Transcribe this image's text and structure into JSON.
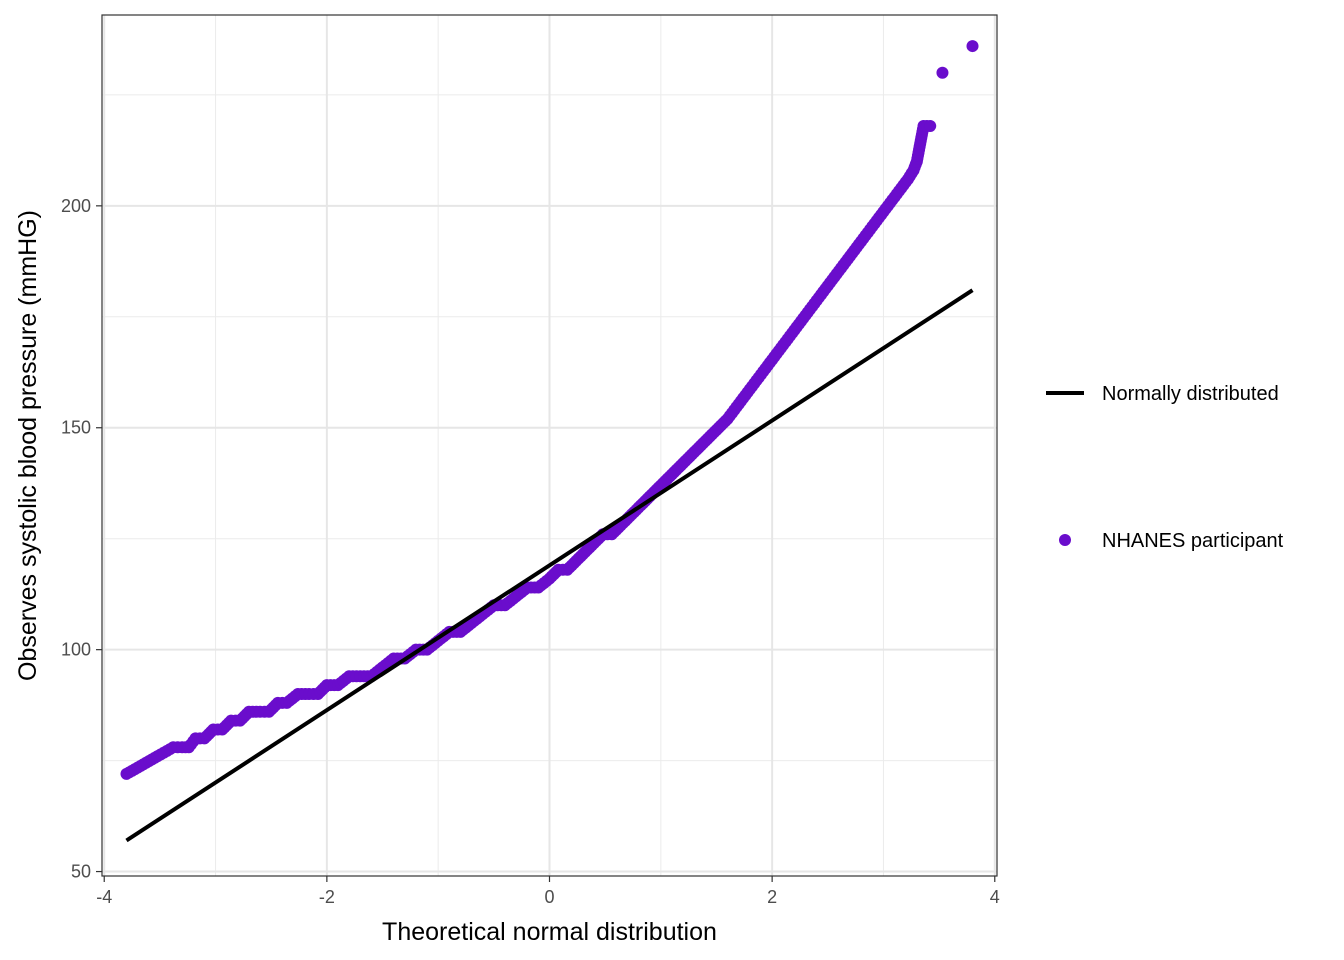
{
  "chart_data": {
    "type": "scatter",
    "xlabel": "Theoretical normal distribution",
    "ylabel": "Observes systolic blood pressure (mmHG)",
    "xlim": [
      -4.02,
      4.02
    ],
    "ylim": [
      49,
      243
    ],
    "x_ticks": [
      -4,
      -2,
      0,
      2,
      4
    ],
    "x_tick_labels": [
      "-4",
      "-2",
      "0",
      "2",
      "4"
    ],
    "y_ticks": [
      50,
      100,
      150,
      200
    ],
    "y_tick_labels": [
      "50",
      "100",
      "150",
      "200"
    ],
    "grid": true,
    "legend_position": "right",
    "colors": {
      "points": "#6a0dcc",
      "line": "#000000"
    },
    "series": [
      {
        "name": "Normally distributed",
        "kind": "line",
        "x": [
          -3.8,
          3.8
        ],
        "y": [
          57,
          181
        ]
      },
      {
        "name": "NHANES participant",
        "kind": "points",
        "points": [
          [
            -3.8,
            72
          ],
          [
            -3.52,
            76
          ],
          [
            -3.38,
            78
          ],
          [
            -3.3,
            78
          ],
          [
            -3.24,
            78
          ],
          [
            -3.18,
            80
          ],
          [
            -3.1,
            80
          ],
          [
            -3.02,
            82
          ],
          [
            -2.94,
            82
          ],
          [
            -2.86,
            84
          ],
          [
            -2.78,
            84
          ],
          [
            -2.7,
            86
          ],
          [
            -2.6,
            86
          ],
          [
            -2.52,
            86
          ],
          [
            -2.44,
            88
          ],
          [
            -2.36,
            88
          ],
          [
            -2.26,
            90
          ],
          [
            -2.16,
            90
          ],
          [
            -2.08,
            90
          ],
          [
            -2.0,
            92
          ],
          [
            -1.9,
            92
          ],
          [
            -1.8,
            94
          ],
          [
            -1.7,
            94
          ],
          [
            -1.6,
            94
          ],
          [
            -1.5,
            96
          ],
          [
            -1.4,
            98
          ],
          [
            -1.3,
            98
          ],
          [
            -1.2,
            100
          ],
          [
            -1.1,
            100
          ],
          [
            -1.0,
            102
          ],
          [
            -0.9,
            104
          ],
          [
            -0.8,
            104
          ],
          [
            -0.7,
            106
          ],
          [
            -0.6,
            108
          ],
          [
            -0.5,
            110
          ],
          [
            -0.4,
            110
          ],
          [
            -0.3,
            112
          ],
          [
            -0.2,
            114
          ],
          [
            -0.1,
            114
          ],
          [
            0.0,
            116
          ],
          [
            0.08,
            118
          ],
          [
            0.16,
            118
          ],
          [
            0.24,
            120
          ],
          [
            0.32,
            122
          ],
          [
            0.4,
            124
          ],
          [
            0.48,
            126
          ],
          [
            0.56,
            126
          ],
          [
            0.64,
            128
          ],
          [
            0.72,
            130
          ],
          [
            0.8,
            132
          ],
          [
            0.88,
            134
          ],
          [
            0.96,
            136
          ],
          [
            1.04,
            138
          ],
          [
            1.12,
            140
          ],
          [
            1.2,
            142
          ],
          [
            1.28,
            144
          ],
          [
            1.36,
            146
          ],
          [
            1.44,
            148
          ],
          [
            1.52,
            150
          ],
          [
            1.6,
            152
          ],
          [
            1.66,
            154
          ],
          [
            1.72,
            156
          ],
          [
            1.78,
            158
          ],
          [
            1.84,
            160
          ],
          [
            1.9,
            162
          ],
          [
            1.96,
            164
          ],
          [
            2.02,
            166
          ],
          [
            2.08,
            168
          ],
          [
            2.14,
            170
          ],
          [
            2.2,
            172
          ],
          [
            2.26,
            174
          ],
          [
            2.32,
            176
          ],
          [
            2.38,
            178
          ],
          [
            2.44,
            180
          ],
          [
            2.5,
            182
          ],
          [
            2.56,
            184
          ],
          [
            2.62,
            186
          ],
          [
            2.68,
            188
          ],
          [
            2.74,
            190
          ],
          [
            2.8,
            192
          ],
          [
            2.86,
            194
          ],
          [
            2.92,
            196
          ],
          [
            2.98,
            198
          ],
          [
            3.04,
            200
          ],
          [
            3.1,
            202
          ],
          [
            3.16,
            204
          ],
          [
            3.22,
            206
          ],
          [
            3.27,
            208
          ],
          [
            3.3,
            210
          ],
          [
            3.36,
            218
          ],
          [
            3.42,
            218
          ],
          [
            3.53,
            230
          ],
          [
            3.8,
            236
          ]
        ]
      }
    ]
  }
}
